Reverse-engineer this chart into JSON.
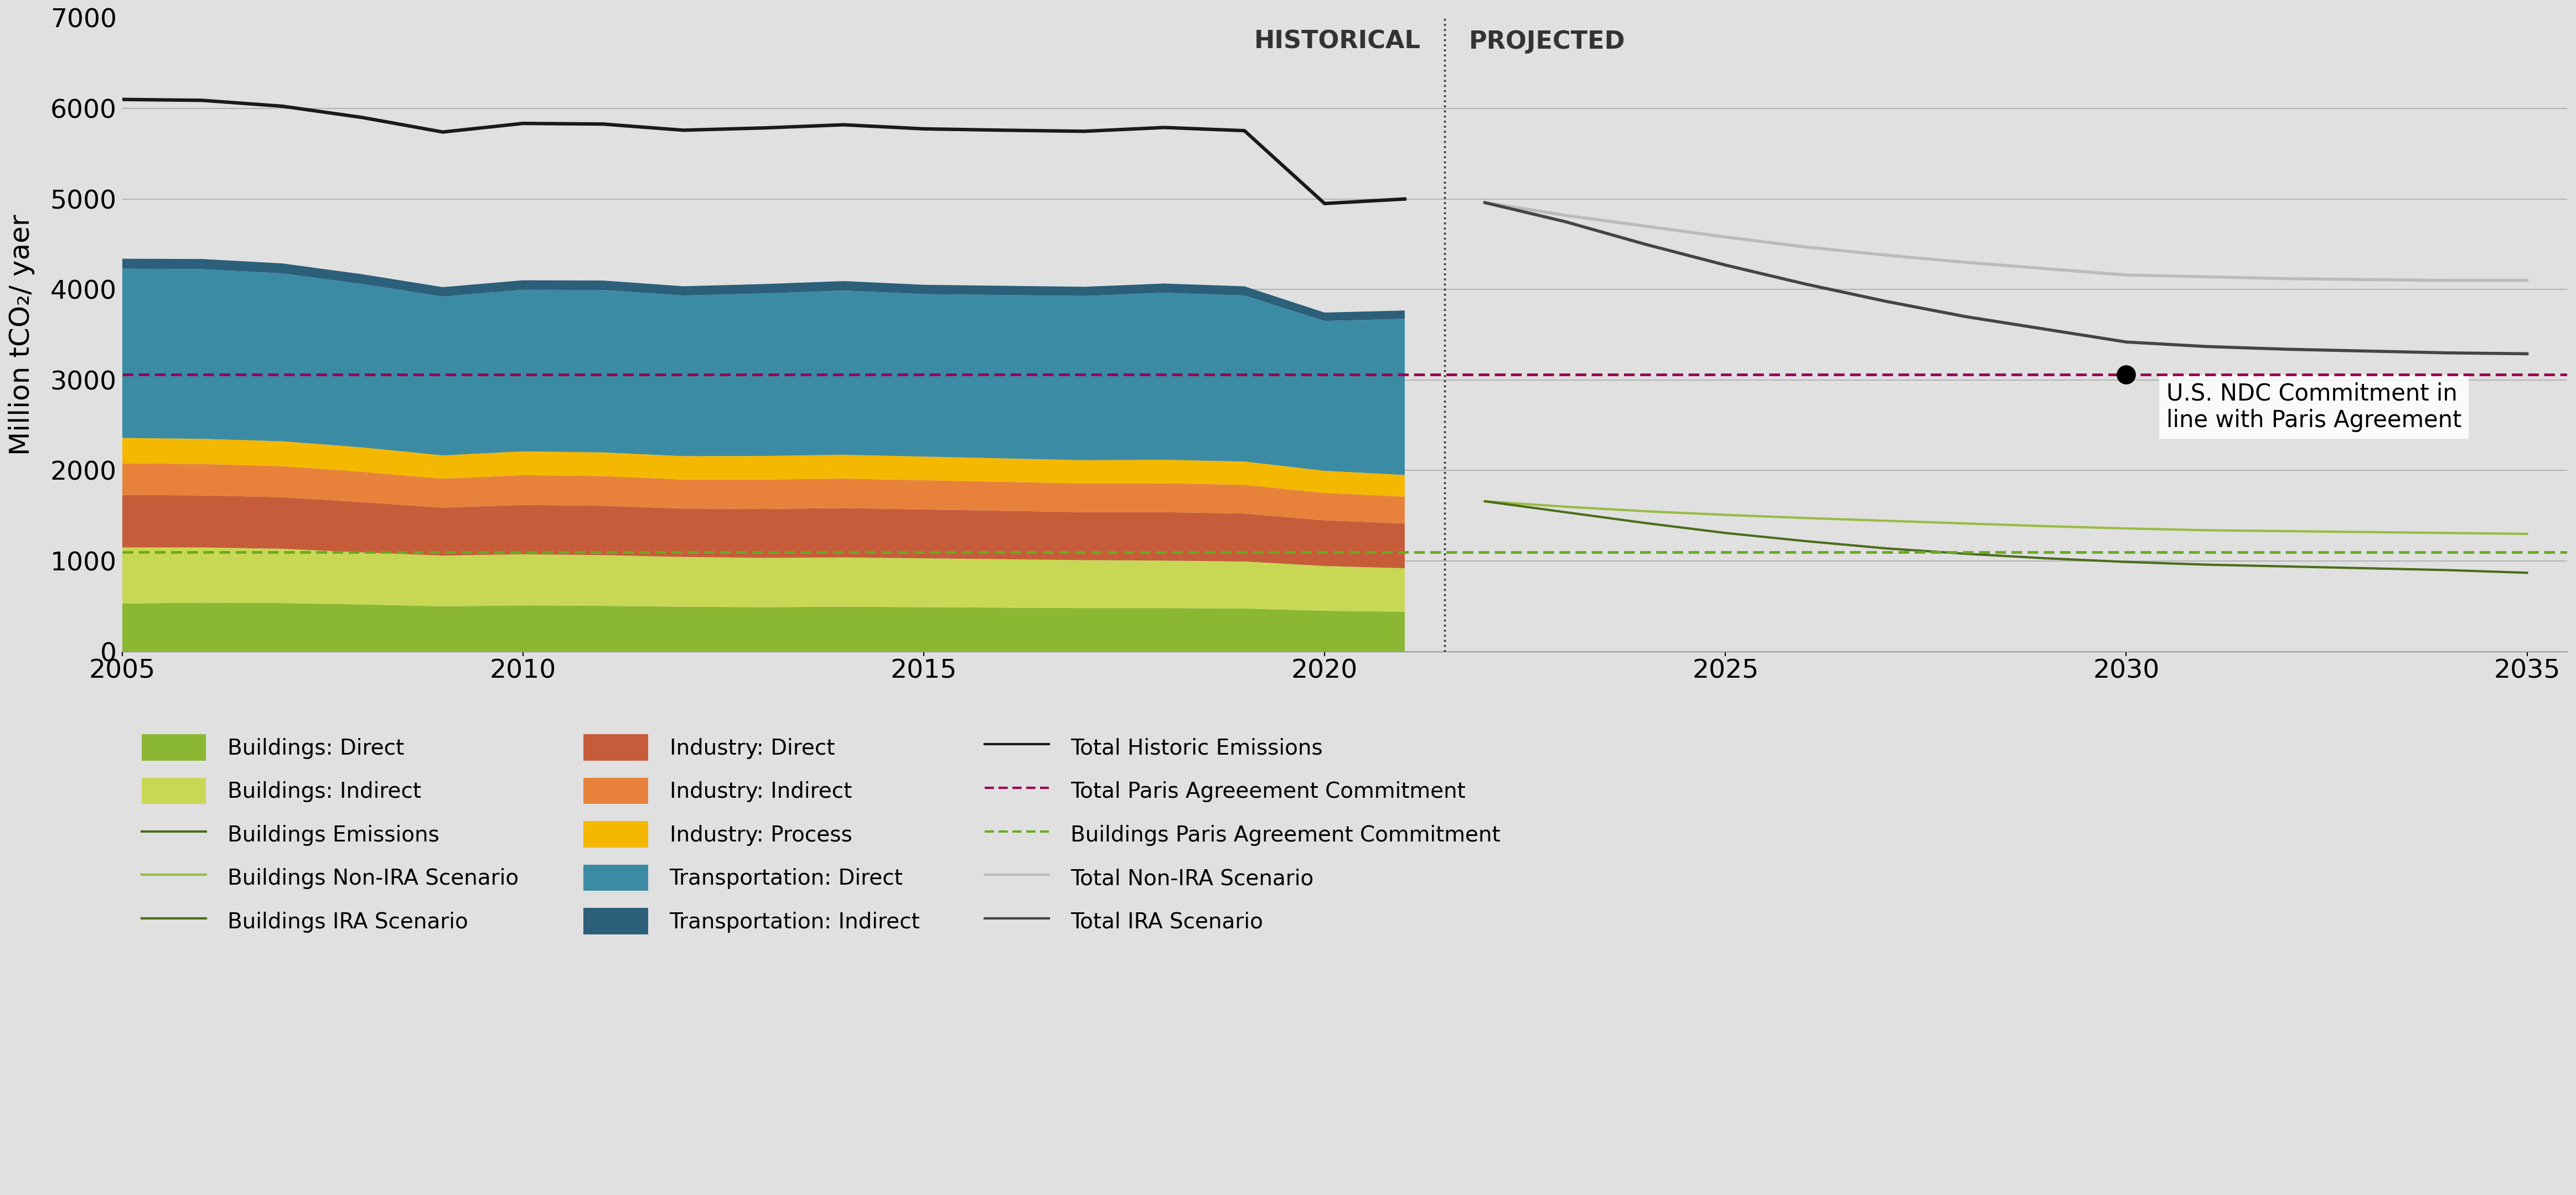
{
  "bg_color": "#e0e0e0",
  "ylabel": "Million tCO₂/ yaer",
  "ylim": [
    0,
    7000
  ],
  "yticks": [
    0,
    1000,
    2000,
    3000,
    4000,
    5000,
    6000,
    7000
  ],
  "hist_years": [
    2005,
    2006,
    2007,
    2008,
    2009,
    2010,
    2011,
    2012,
    2013,
    2014,
    2015,
    2016,
    2017,
    2018,
    2019,
    2020,
    2021
  ],
  "proj_years": [
    2022,
    2023,
    2024,
    2025,
    2026,
    2027,
    2028,
    2029,
    2030,
    2031,
    2032,
    2033,
    2034,
    2035
  ],
  "buildings_direct": [
    530,
    540,
    535,
    520,
    500,
    510,
    505,
    495,
    490,
    495,
    490,
    485,
    480,
    480,
    475,
    450,
    440
  ],
  "buildings_indirect": [
    620,
    610,
    600,
    575,
    560,
    565,
    560,
    550,
    545,
    545,
    540,
    535,
    530,
    525,
    520,
    495,
    480
  ],
  "industry_direct": [
    580,
    575,
    570,
    555,
    530,
    545,
    545,
    535,
    540,
    545,
    540,
    535,
    530,
    535,
    530,
    505,
    495
  ],
  "industry_indirect": [
    350,
    347,
    343,
    335,
    320,
    329,
    329,
    320,
    325,
    326,
    323,
    320,
    317,
    320,
    317,
    302,
    296
  ],
  "industry_process": [
    280,
    278,
    275,
    270,
    257,
    263,
    261,
    259,
    261,
    263,
    261,
    259,
    257,
    259,
    257,
    245,
    240
  ],
  "transportation_direct": [
    1870,
    1875,
    1855,
    1805,
    1755,
    1785,
    1795,
    1775,
    1795,
    1815,
    1795,
    1805,
    1815,
    1845,
    1835,
    1655,
    1725
  ],
  "transportation_indirect": [
    110,
    112,
    110,
    108,
    104,
    105,
    104,
    102,
    104,
    104,
    103,
    102,
    101,
    102,
    101,
    93,
    92
  ],
  "total_historic": [
    6100,
    6090,
    6025,
    5900,
    5740,
    5835,
    5828,
    5760,
    5785,
    5820,
    5775,
    5760,
    5748,
    5790,
    5755,
    4950,
    5000
  ],
  "ndc_line_value": 3060,
  "buildings_paris_value": 1100,
  "proj_total_non_ira": [
    4960,
    4820,
    4700,
    4580,
    4470,
    4380,
    4300,
    4230,
    4160,
    4140,
    4120,
    4110,
    4100,
    4100
  ],
  "proj_total_ira": [
    4960,
    4750,
    4500,
    4270,
    4060,
    3870,
    3700,
    3560,
    3420,
    3370,
    3340,
    3320,
    3300,
    3290
  ],
  "proj_buildings_non_ira": [
    1660,
    1600,
    1550,
    1510,
    1475,
    1445,
    1415,
    1385,
    1360,
    1340,
    1330,
    1320,
    1310,
    1300
  ],
  "proj_buildings_ira": [
    1660,
    1540,
    1420,
    1310,
    1220,
    1140,
    1080,
    1030,
    990,
    960,
    940,
    920,
    900,
    870
  ],
  "colors": {
    "buildings_direct": "#8ab833",
    "buildings_indirect": "#c8d855",
    "industry_direct": "#c75c3a",
    "industry_indirect": "#e8823a",
    "industry_process": "#f5b800",
    "transportation_direct": "#3b8ba5",
    "transportation_indirect": "#2b5f7a",
    "total_historic": "#1a1a1a",
    "total_ndc": "#990055",
    "buildings_paris": "#6aaa22",
    "total_non_ira": "#bbbbbb",
    "total_ira": "#444444",
    "buildings_non_ira_line": "#99bb44",
    "buildings_ira_line": "#4a6e1a"
  }
}
